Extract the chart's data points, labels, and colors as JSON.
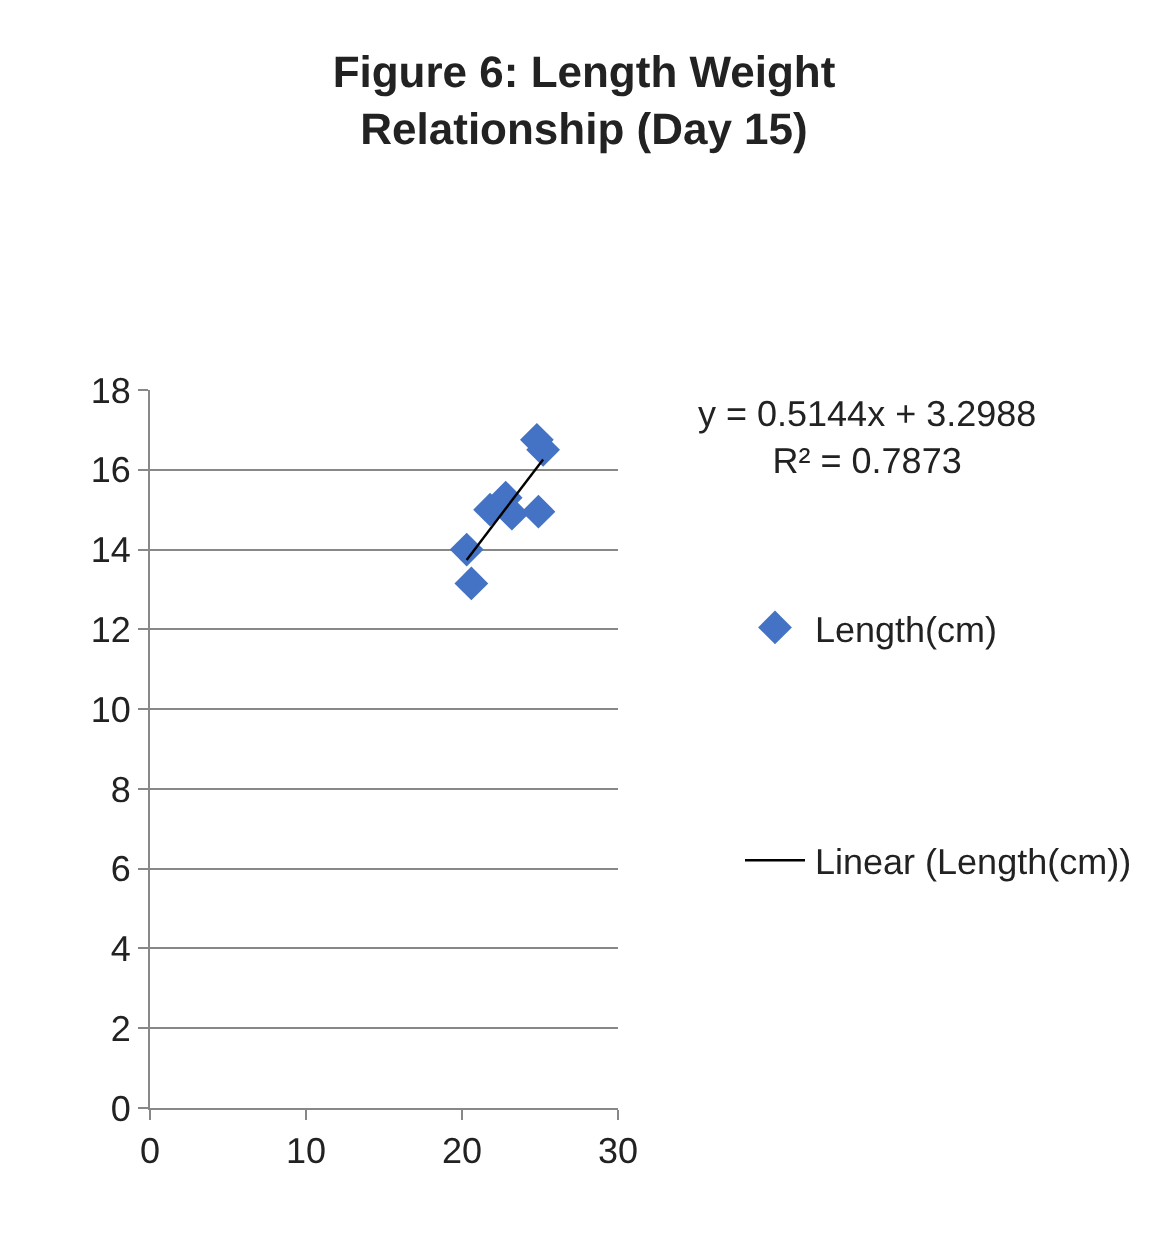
{
  "chart_data": {
    "type": "scatter",
    "title": "Figure 6: Length Weight\nRelationship (Day 15)",
    "series": [
      {
        "name": "Length(cm)",
        "color": "#4472c4",
        "marker": "diamond",
        "x": [
          20.3,
          20.6,
          21.8,
          22.8,
          23.2,
          24.9,
          24.8,
          25.2
        ],
        "values": [
          14.0,
          13.15,
          15.0,
          15.3,
          14.9,
          14.95,
          16.75,
          16.5
        ]
      },
      {
        "name": "Linear (Length(cm))",
        "type": "line",
        "color": "#000000",
        "marker": "none",
        "line_style": "solid",
        "x": [
          20.3,
          25.2
        ],
        "values": [
          13.74,
          16.26
        ]
      }
    ],
    "xlim": [
      0,
      30
    ],
    "xticks": [
      0,
      10,
      20,
      30
    ],
    "ylim": [
      0,
      18
    ],
    "yticks": [
      0,
      2,
      4,
      6,
      8,
      10,
      12,
      14,
      16,
      18
    ],
    "grid": "y",
    "legend": "right",
    "annotations": [
      "y = 0.5144x + 3.2988\nR² = 0.7873"
    ]
  }
}
